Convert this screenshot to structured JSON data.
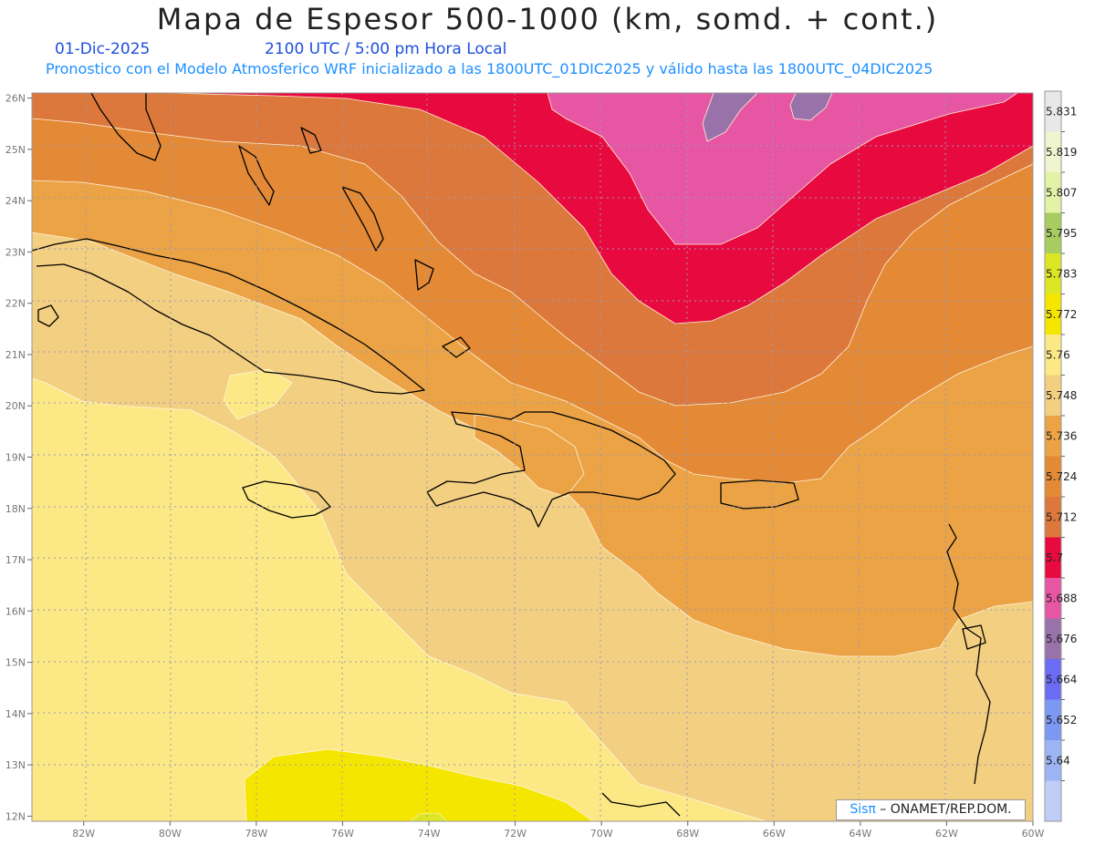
{
  "header": {
    "title": "Mapa de Espesor 500-1000 (km, somd. + cont.)",
    "date": "01-Dic-2025",
    "time": "2100 UTC / 5:00 pm Hora Local",
    "subtitle": "Pronostico con el Modelo Atmosferico WRF inicializado a las 1800UTC_01DIC2025 y válido hasta las  1800UTC_04DIC2025"
  },
  "map": {
    "lon_labels": [
      "82W",
      "80W",
      "78W",
      "76W",
      "74W",
      "72W",
      "70W",
      "68W",
      "66W",
      "64W",
      "62W",
      "60W"
    ],
    "lat_labels": [
      "26N",
      "25N",
      "24N",
      "23N",
      "22N",
      "21N",
      "20N",
      "19N",
      "18N",
      "17N",
      "16N",
      "15N",
      "14N",
      "13N",
      "12N"
    ],
    "lon_range": [
      -83.2,
      -60
    ],
    "lat_range": [
      11.9,
      26.1
    ],
    "grid": true
  },
  "colorbar": {
    "levels": [
      "5.831",
      "5.819",
      "5.807",
      "5.795",
      "5.783",
      "5.772",
      "5.76",
      "5.748",
      "5.736",
      "5.724",
      "5.712",
      "5.7",
      "5.688",
      "5.676",
      "5.664",
      "5.652",
      "5.64"
    ],
    "colors": [
      "#e8e8e8",
      "#f0f5d0",
      "#e2f3a8",
      "#a8cc60",
      "#dce624",
      "#f5e600",
      "#fce884",
      "#f3cf82",
      "#eba346",
      "#e48a36",
      "#dc783c",
      "#e8093f",
      "#e756a2",
      "#9a72aa",
      "#6b6cf4",
      "#7c98f2",
      "#9cb4f4",
      "#c0cdf6"
    ]
  },
  "credit": {
    "sis": "Sisπ",
    "rest": " – ONAMET/REP.DOM."
  }
}
